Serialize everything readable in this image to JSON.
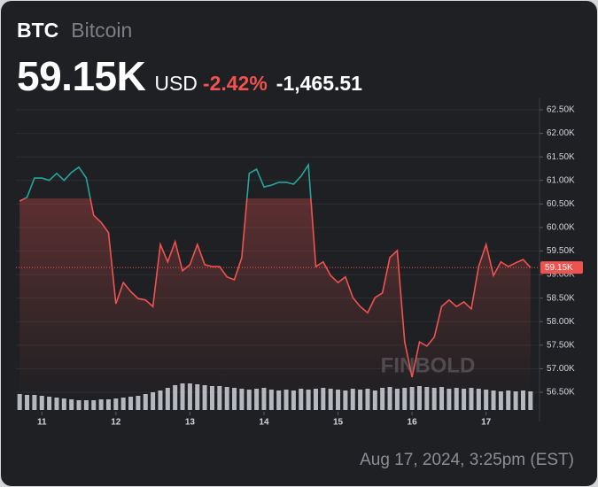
{
  "header": {
    "symbol": "BTC",
    "name": "Bitcoin",
    "price": "59.15K",
    "currency": "USD",
    "change_percent": "-2.42%",
    "change": "-1,465.51"
  },
  "timestamp": "Aug 17, 2024, 3:25pm (EST)",
  "chart_data": {
    "type": "line",
    "watermark": "FINBOLD",
    "x": [
      10.7,
      10.8,
      10.9,
      11.0,
      11.1,
      11.2,
      11.3,
      11.4,
      11.5,
      11.6,
      11.7,
      11.8,
      11.9,
      12.0,
      12.1,
      12.2,
      12.3,
      12.4,
      12.5,
      12.6,
      12.7,
      12.8,
      12.9,
      13.0,
      13.1,
      13.2,
      13.3,
      13.4,
      13.5,
      13.6,
      13.7,
      13.8,
      13.9,
      14.0,
      14.1,
      14.2,
      14.3,
      14.4,
      14.5,
      14.6,
      14.7,
      14.8,
      14.9,
      15.0,
      15.1,
      15.2,
      15.3,
      15.4,
      15.5,
      15.6,
      15.7,
      15.8,
      15.9,
      16.0,
      16.1,
      16.2,
      16.3,
      16.4,
      16.5,
      16.6,
      16.7,
      16.8,
      16.9,
      17.0,
      17.1,
      17.2,
      17.3,
      17.4,
      17.5,
      17.6
    ],
    "series": [
      {
        "values": [
          60560,
          60640,
          61050,
          61050,
          61000,
          61150,
          61000,
          61170,
          61280,
          61050,
          60260,
          60110,
          59890,
          58380,
          58830,
          58640,
          58490,
          58460,
          58320,
          59640,
          59270,
          59700,
          59080,
          59210,
          59640,
          59210,
          59170,
          59170,
          58950,
          58890,
          59360,
          61150,
          61240,
          60860,
          60900,
          60960,
          60960,
          60920,
          61090,
          61330,
          59170,
          59270,
          58980,
          58830,
          58950,
          58510,
          58320,
          58190,
          58510,
          58610,
          59360,
          59510,
          57570,
          56820,
          57570,
          57480,
          57670,
          58320,
          58460,
          58320,
          58420,
          58270,
          59170,
          59640,
          58980,
          59270,
          59170,
          59250,
          59320,
          59150
        ],
        "color": "#ef5350",
        "color_above": "#26a69a",
        "split": 60615.51
      }
    ],
    "volume": [
      18,
      17,
      17,
      16,
      15,
      14,
      13,
      12,
      11,
      11,
      11,
      12,
      12,
      13,
      14,
      15,
      16,
      18,
      20,
      22,
      25,
      28,
      30,
      30,
      29,
      28,
      27,
      27,
      26,
      25,
      24,
      23,
      24,
      25,
      23,
      22,
      23,
      22,
      24,
      23,
      24,
      25,
      24,
      23,
      22,
      24,
      23,
      24,
      22,
      25,
      26,
      24,
      25,
      26,
      27,
      26,
      25,
      26,
      24,
      25,
      24,
      25,
      24,
      23,
      22,
      21,
      22,
      21,
      22,
      21
    ],
    "volume_color": "#d1d4dc",
    "xlim": [
      10.65,
      17.65
    ],
    "xticks": [
      11,
      12,
      13,
      14,
      15,
      16,
      17
    ],
    "ylim": [
      56350,
      62650
    ],
    "yticks": [
      {
        "value": 62500,
        "label": "62.50K"
      },
      {
        "value": 62000,
        "label": "62.00K"
      },
      {
        "value": 61500,
        "label": "61.50K"
      },
      {
        "value": 61000,
        "label": "61.00K"
      },
      {
        "value": 60500,
        "label": "60.50K"
      },
      {
        "value": 60000,
        "label": "60.00K"
      },
      {
        "value": 59500,
        "label": "59.50K"
      },
      {
        "value": 59000,
        "label": "59.00K"
      },
      {
        "value": 58500,
        "label": "58.50K"
      },
      {
        "value": 58000,
        "label": "58.00K"
      },
      {
        "value": 57500,
        "label": "57.50K"
      },
      {
        "value": 57000,
        "label": "57.00K"
      },
      {
        "value": 56500,
        "label": "56.50K"
      }
    ],
    "grid": true
  }
}
